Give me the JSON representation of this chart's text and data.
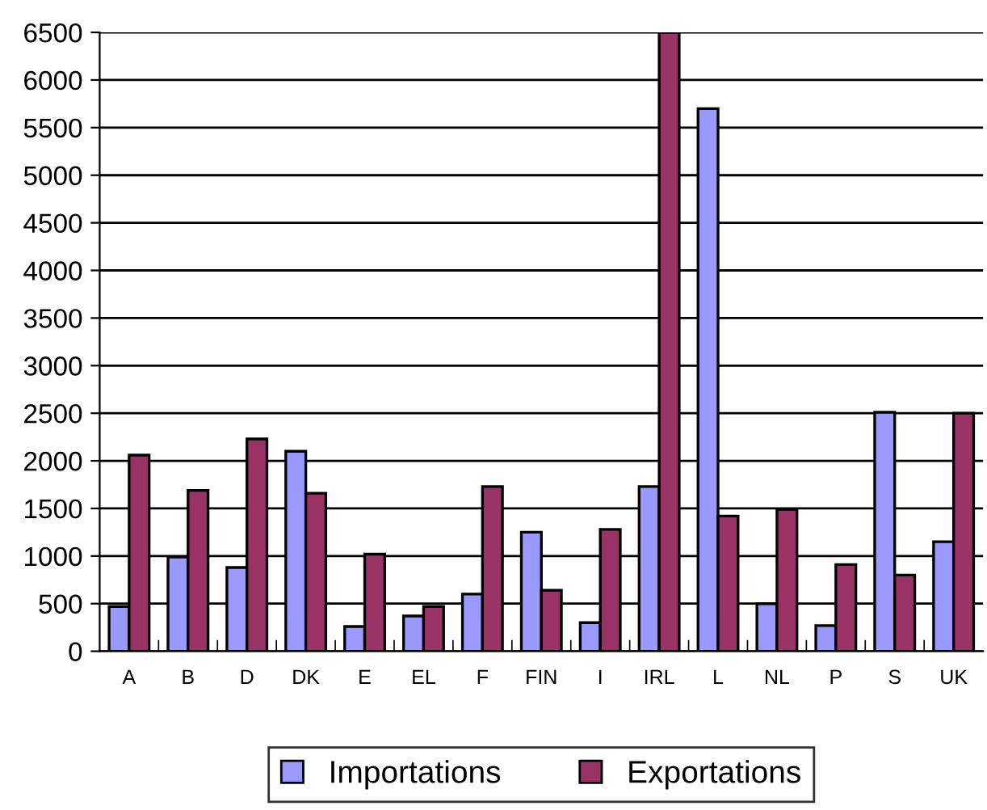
{
  "chart_data": {
    "type": "bar",
    "categories": [
      "A",
      "B",
      "D",
      "DK",
      "E",
      "EL",
      "F",
      "FIN",
      "I",
      "IRL",
      "L",
      "NL",
      "P",
      "S",
      "UK"
    ],
    "series": [
      {
        "name": "Importations",
        "color": "#9999ff",
        "values": [
          470,
          990,
          880,
          2100,
          260,
          370,
          600,
          1250,
          300,
          1730,
          5700,
          500,
          270,
          2510,
          1150
        ]
      },
      {
        "name": "Exportations",
        "color": "#993366",
        "values": [
          2060,
          1690,
          2230,
          1660,
          1020,
          470,
          1730,
          640,
          1280,
          6500,
          1420,
          1490,
          910,
          800,
          2500
        ]
      }
    ],
    "ylim": [
      0,
      6500
    ],
    "yticks": [
      0,
      500,
      1000,
      1500,
      2000,
      2500,
      3000,
      3500,
      4000,
      4500,
      5000,
      5500,
      6000,
      6500
    ],
    "grid": "y",
    "legend": "bottom"
  }
}
